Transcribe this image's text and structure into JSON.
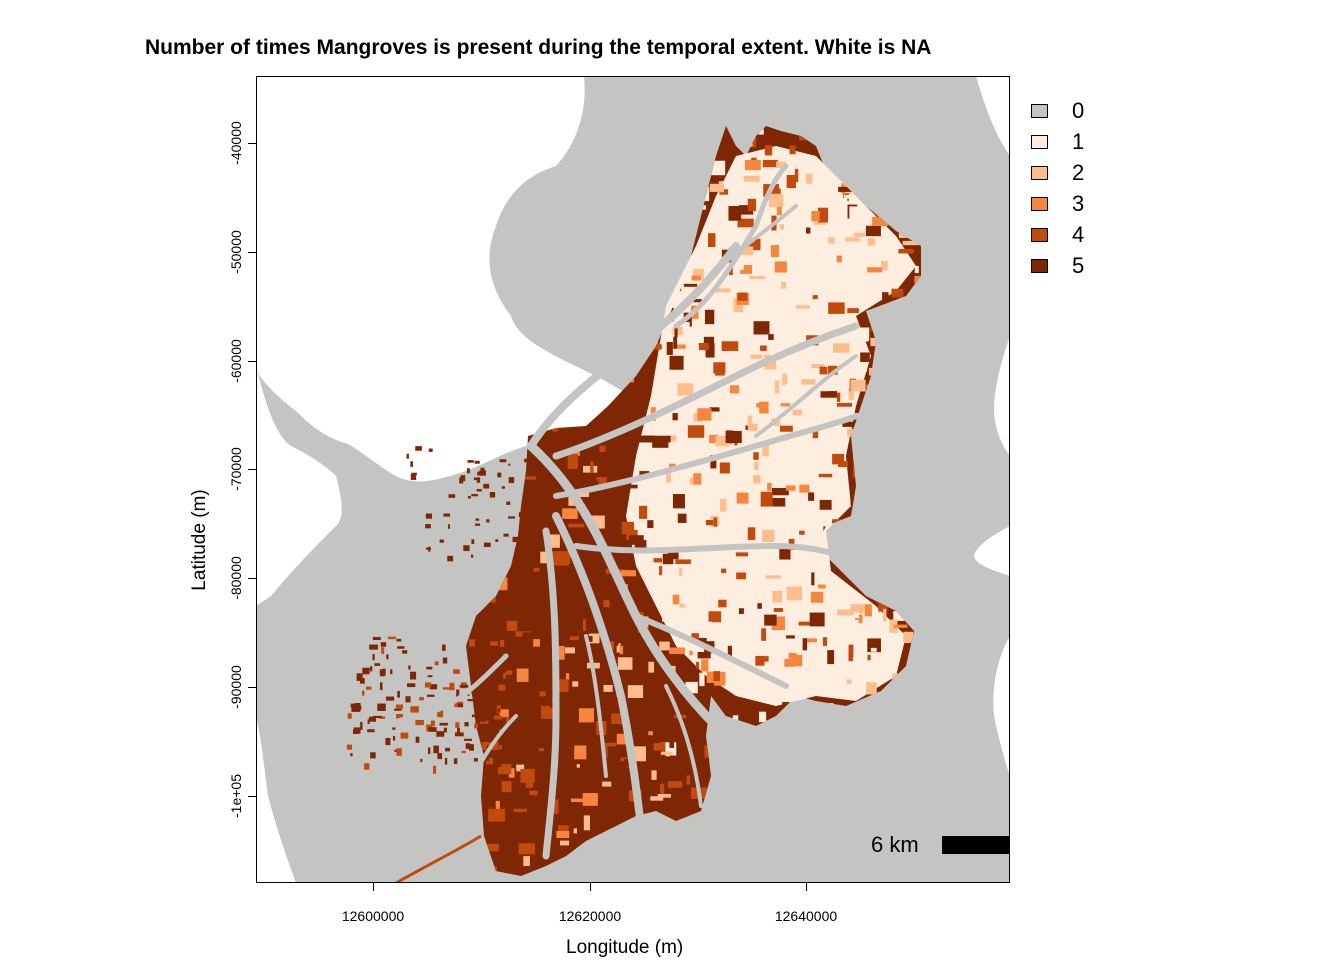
{
  "title": "Number of times Mangroves is present during the temporal extent. White is NA",
  "axes": {
    "xlabel": "Longitude (m)",
    "ylabel": "Latitude (m)",
    "xticks": [
      "12600000",
      "12620000",
      "12640000"
    ],
    "yticks": [
      "-40000",
      "-50000",
      "-60000",
      "-70000",
      "-80000",
      "-90000",
      "-1e+05"
    ]
  },
  "legend": {
    "items": [
      {
        "label": "0",
        "color": "#c4c4c2"
      },
      {
        "label": "1",
        "color": "#fdeee0"
      },
      {
        "label": "2",
        "color": "#fdbd8c"
      },
      {
        "label": "3",
        "color": "#f6863e"
      },
      {
        "label": "4",
        "color": "#c14a0d"
      },
      {
        "label": "5",
        "color": "#7f2704"
      }
    ]
  },
  "scalebar": {
    "label": "6 km"
  },
  "colors": {
    "na": "#ffffff",
    "zero": "#c4c4c2",
    "channel": "#c4c4c2"
  }
}
